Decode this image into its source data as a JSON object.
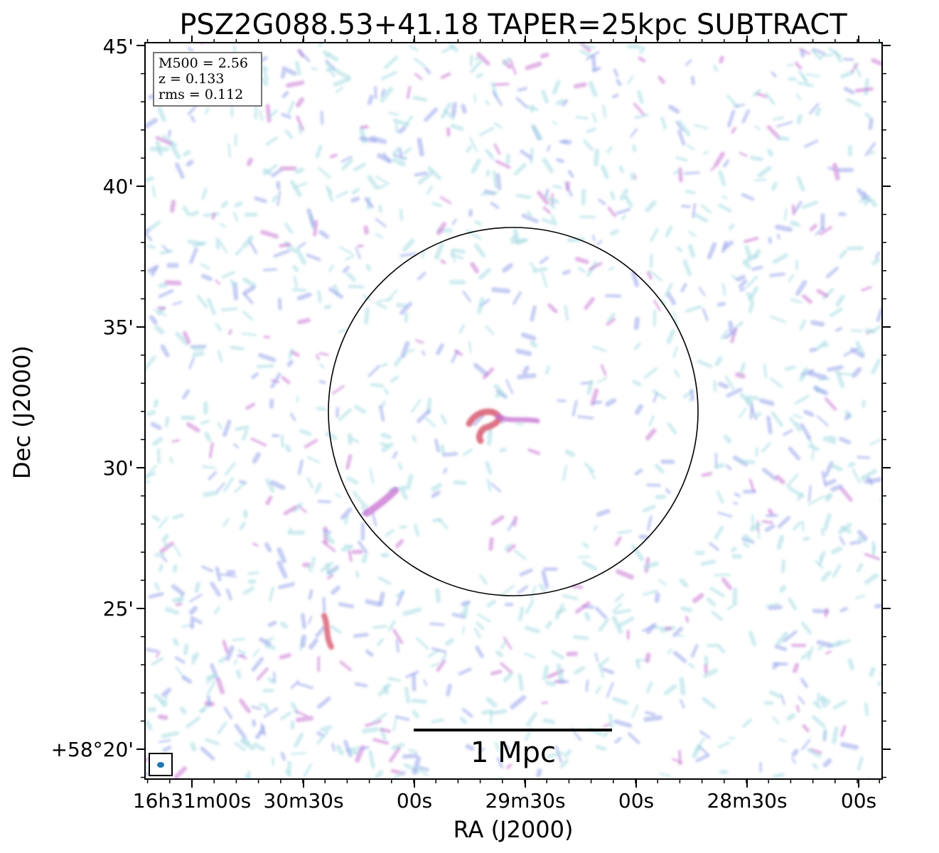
{
  "figure": {
    "title": "PSZ2G088.53+41.18 TAPER=25kpc SUBTRACT",
    "xlabel": "RA (J2000)",
    "ylabel": "Dec (J2000)",
    "x_tick_labels": [
      "16h31m00s",
      "30m30s",
      "00s",
      "29m30s",
      "00s",
      "28m30s",
      "00s"
    ],
    "y_tick_labels": [
      "+58°20'",
      "25'",
      "30'",
      "35'",
      "40'",
      "45'"
    ],
    "info": {
      "m500": "M500 = 2.56",
      "z": "z = 0.133",
      "rms": "rms = 0.112"
    },
    "scalebar_label": "1 Mpc",
    "colors": {
      "noise_low": "#a9dde3",
      "noise_mid": "#9aa6ec",
      "noise_high": "#c66fd0",
      "source": "#d75a70",
      "beam": "#1f77b4",
      "frame": "#000000"
    },
    "icons": {
      "beam": "beam-ellipse-icon"
    }
  }
}
